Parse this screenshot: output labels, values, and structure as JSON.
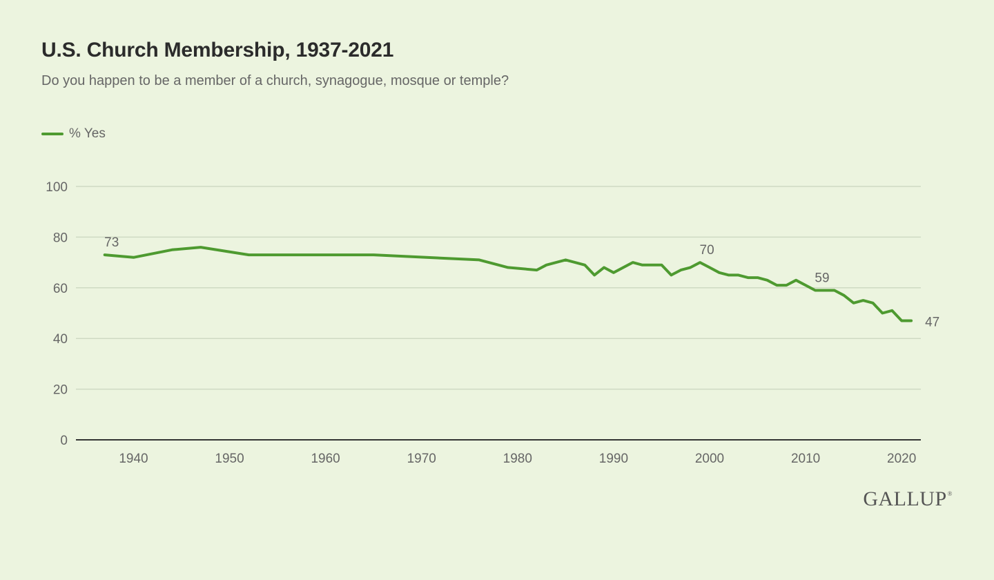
{
  "header": {
    "title": "U.S. Church Membership, 1937-2021",
    "subtitle": "Do you happen to be a member of a church, synagogue, mosque or temple?"
  },
  "legend": {
    "label": "% Yes"
  },
  "branding": {
    "logo_text": "GALLUP",
    "logo_mark": "®"
  },
  "colors": {
    "background": "#ecf4df",
    "line": "#4e9a30",
    "grid": "#cfdac3",
    "axis": "#333333",
    "tick_text": "#666666"
  },
  "chart_data": {
    "type": "line",
    "title": "U.S. Church Membership, 1937-2021",
    "subtitle": "Do you happen to be a member of a church, synagogue, mosque or temple?",
    "xlabel": "",
    "ylabel": "",
    "xlim": [
      1934,
      2022
    ],
    "ylim": [
      0,
      100
    ],
    "x_ticks": [
      1940,
      1950,
      1960,
      1970,
      1980,
      1990,
      2000,
      2010,
      2020
    ],
    "y_ticks": [
      0,
      20,
      40,
      60,
      80,
      100
    ],
    "grid": true,
    "legend_position": "top-left",
    "series": [
      {
        "name": "% Yes",
        "x": [
          1937,
          1940,
          1944,
          1947,
          1952,
          1965,
          1976,
          1979,
          1982,
          1983,
          1985,
          1987,
          1988,
          1989,
          1990,
          1992,
          1993,
          1995,
          1996,
          1997,
          1998,
          1999,
          2000,
          2001,
          2002,
          2003,
          2004,
          2005,
          2006,
          2007,
          2008,
          2009,
          2010,
          2011,
          2012,
          2013,
          2014,
          2015,
          2016,
          2017,
          2018,
          2019,
          2020,
          2021
        ],
        "values": [
          73,
          72,
          75,
          76,
          73,
          73,
          71,
          68,
          67,
          69,
          71,
          69,
          65,
          68,
          66,
          70,
          69,
          69,
          65,
          67,
          68,
          70,
          68,
          66,
          65,
          65,
          64,
          64,
          63,
          61,
          61,
          63,
          61,
          59,
          59,
          59,
          57,
          54,
          55,
          54,
          50,
          51,
          47,
          47
        ]
      }
    ],
    "annotations": [
      {
        "x": 1937,
        "y": 73,
        "text": "73"
      },
      {
        "x": 1999,
        "y": 70,
        "text": "70"
      },
      {
        "x": 2011,
        "y": 59,
        "text": "59"
      },
      {
        "x": 2021,
        "y": 47,
        "text": "47"
      }
    ]
  }
}
